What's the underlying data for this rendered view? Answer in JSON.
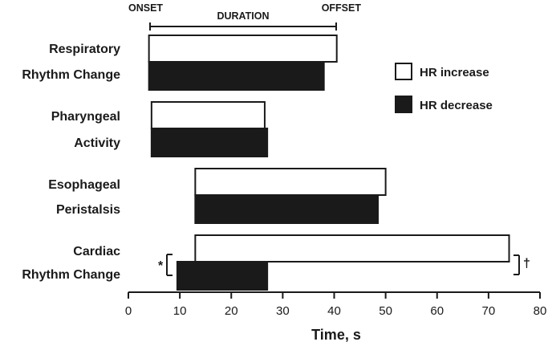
{
  "chart_data": {
    "type": "bar",
    "orientation": "horizontal",
    "xlabel": "Time, s",
    "xlim": [
      0,
      80
    ],
    "xticks": [
      "0",
      "10",
      "20",
      "30",
      "40",
      "50",
      "60",
      "70",
      "80"
    ],
    "grid": false,
    "legend_position": "right",
    "categories": [
      {
        "line1": "Respiratory",
        "line2": "Rhythm Change"
      },
      {
        "line1": "Pharyngeal",
        "line2": "Activity"
      },
      {
        "line1": "Esophageal",
        "line2": "Peristalsis"
      },
      {
        "line1": "Cardiac",
        "line2": "Rhythm Change"
      }
    ],
    "series": [
      {
        "name": "HR increase",
        "fill": "#ffffff",
        "bars": [
          {
            "onset": 4,
            "offset": 40.5
          },
          {
            "onset": 4.5,
            "offset": 26.5
          },
          {
            "onset": 13,
            "offset": 50
          },
          {
            "onset": 13,
            "offset": 74
          }
        ]
      },
      {
        "name": "HR decrease",
        "fill": "#1a1a1a",
        "bars": [
          {
            "onset": 4,
            "offset": 38
          },
          {
            "onset": 4.5,
            "offset": 27
          },
          {
            "onset": 13,
            "offset": 48.5
          },
          {
            "onset": 9.5,
            "offset": 27
          }
        ]
      }
    ],
    "header_annotation": {
      "onset_label": "ONSET",
      "duration_label": "DURATION",
      "offset_label": "OFFSET"
    },
    "significance": {
      "left_marker": "*",
      "right_marker": "†"
    }
  }
}
